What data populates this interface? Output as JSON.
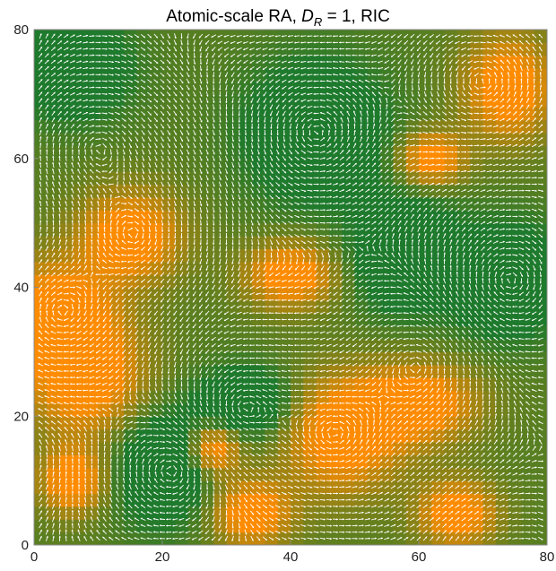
{
  "chart_data": {
    "type": "heatmap",
    "title_main": "Atomic-scale RA,  ",
    "title_symbol": "D",
    "title_subscript": "R",
    "title_rest": " = 1,  RIC",
    "xlim": [
      0,
      80
    ],
    "ylim": [
      0,
      80
    ],
    "xticks": [
      0,
      20,
      40,
      60,
      80
    ],
    "yticks": [
      0,
      20,
      40,
      60,
      80
    ],
    "grid": false,
    "colors": {
      "green": "#1e7a2c",
      "orange": "#ff8c00",
      "arrow": "#ffffff"
    },
    "orange_regions": [
      {
        "x": 3,
        "y": 36,
        "rx": 9,
        "ry": 8
      },
      {
        "x": 15,
        "y": 48,
        "rx": 8,
        "ry": 7
      },
      {
        "x": 8,
        "y": 26,
        "rx": 9,
        "ry": 9
      },
      {
        "x": 48,
        "y": 17,
        "rx": 9,
        "ry": 9
      },
      {
        "x": 60,
        "y": 22,
        "rx": 9,
        "ry": 6
      },
      {
        "x": 28,
        "y": 15,
        "rx": 4,
        "ry": 4
      },
      {
        "x": 40,
        "y": 42,
        "rx": 7,
        "ry": 5
      },
      {
        "x": 74,
        "y": 71,
        "rx": 7,
        "ry": 8
      },
      {
        "x": 34,
        "y": 5,
        "rx": 6,
        "ry": 5
      },
      {
        "x": 66,
        "y": 5,
        "rx": 6,
        "ry": 5
      },
      {
        "x": 6,
        "y": 10,
        "rx": 5,
        "ry": 5
      },
      {
        "x": 62,
        "y": 60,
        "rx": 5,
        "ry": 4
      }
    ],
    "green_regions": [
      {
        "x": 44,
        "y": 64,
        "rx": 10,
        "ry": 10
      },
      {
        "x": 74,
        "y": 41,
        "rx": 8,
        "ry": 8
      },
      {
        "x": 20,
        "y": 12,
        "rx": 7,
        "ry": 8
      },
      {
        "x": 33,
        "y": 22,
        "rx": 7,
        "ry": 5
      },
      {
        "x": 6,
        "y": 74,
        "rx": 8,
        "ry": 7
      },
      {
        "x": 58,
        "y": 45,
        "rx": 8,
        "ry": 8
      }
    ],
    "vortices": [
      {
        "x": 44,
        "y": 64
      },
      {
        "x": 74,
        "y": 41
      },
      {
        "x": 47,
        "y": 17
      },
      {
        "x": 16,
        "y": 48
      },
      {
        "x": 32,
        "y": 21
      },
      {
        "x": 4,
        "y": 36
      },
      {
        "x": 60,
        "y": 28
      },
      {
        "x": 22,
        "y": 12
      },
      {
        "x": 70,
        "y": 72
      },
      {
        "x": 10,
        "y": 62
      }
    ]
  }
}
